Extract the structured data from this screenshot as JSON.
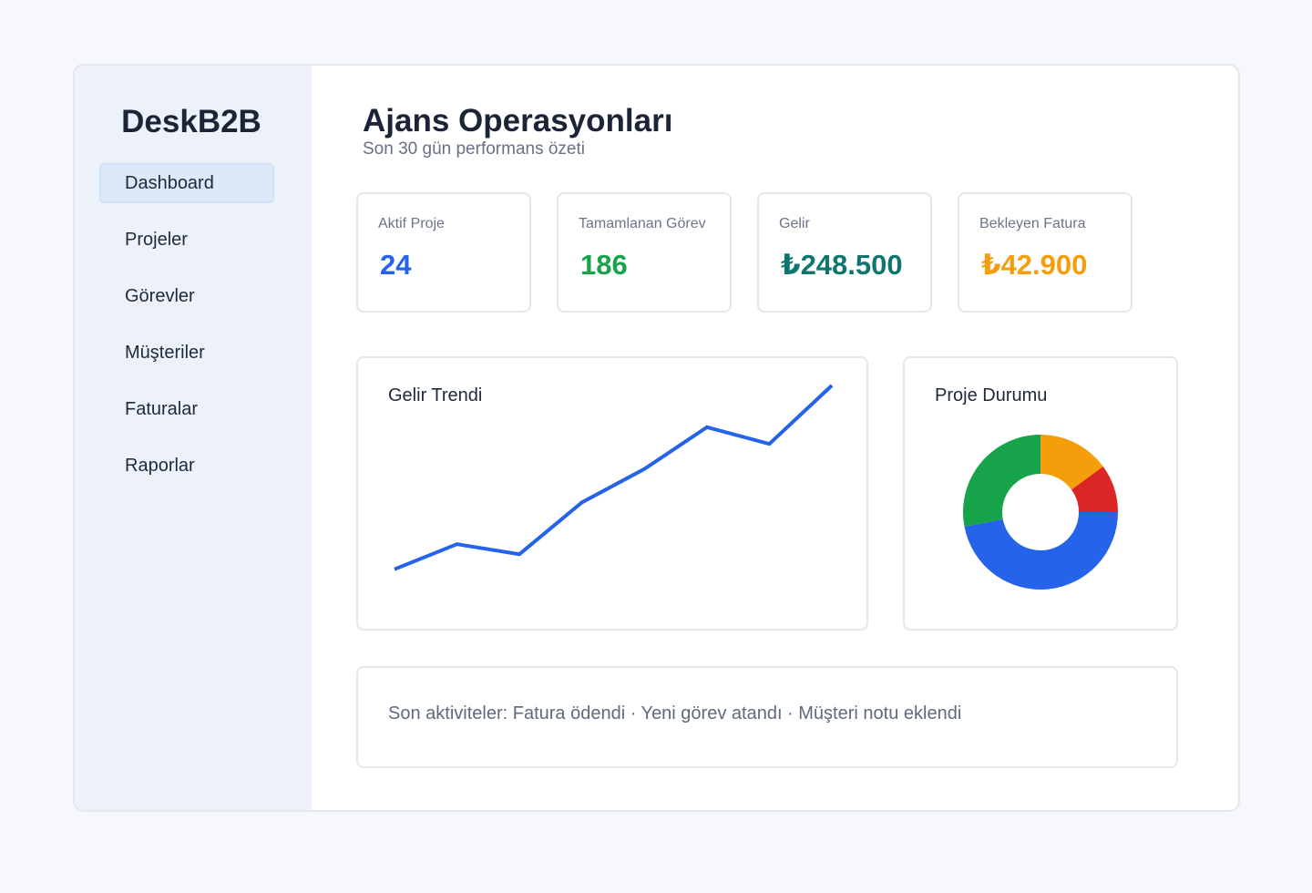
{
  "sidebar": {
    "brand": "DeskB2B",
    "items": [
      {
        "label": "Dashboard",
        "active": true
      },
      {
        "label": "Projeler",
        "active": false
      },
      {
        "label": "Görevler",
        "active": false
      },
      {
        "label": "Müşteriler",
        "active": false
      },
      {
        "label": "Faturalar",
        "active": false
      },
      {
        "label": "Raporlar",
        "active": false
      }
    ]
  },
  "header": {
    "title": "Ajans Operasyonları",
    "subtitle": "Son 30 gün performans özeti"
  },
  "stats": [
    {
      "label": "Aktif Proje",
      "value": "24",
      "color": "#2563eb"
    },
    {
      "label": "Tamamlanan Görev",
      "value": "186",
      "color": "#16a34a"
    },
    {
      "label": "Gelir",
      "value": "₺248.500",
      "color": "#0f766e"
    },
    {
      "label": "Bekleyen Fatura",
      "value": "₺42.900",
      "color": "#f59e0b"
    }
  ],
  "charts": {
    "revenue_title": "Gelir Trendi",
    "status_title": "Proje Durumu"
  },
  "chart_data": [
    {
      "type": "line",
      "title": "Gelir Trendi",
      "x": [
        1,
        2,
        3,
        4,
        5,
        6,
        7,
        8
      ],
      "series": [
        {
          "values": [
            10,
            25,
            19,
            50,
            70,
            95,
            85,
            120
          ],
          "color": "#2563eb"
        }
      ],
      "ylim": [
        0,
        120
      ],
      "grid": false,
      "xlabel": "",
      "ylabel": ""
    },
    {
      "type": "pie",
      "title": "Proje Durumu",
      "donut": true,
      "slices": [
        {
          "value": 47,
          "color": "#2563eb"
        },
        {
          "value": 28,
          "color": "#16a34a"
        },
        {
          "value": 15,
          "color": "#f59e0b"
        },
        {
          "value": 10,
          "color": "#dc2626"
        }
      ]
    }
  ],
  "activity": {
    "text": "Son aktiviteler: Fatura ödendi · Yeni görev atandı · Müşteri notu eklendi"
  }
}
